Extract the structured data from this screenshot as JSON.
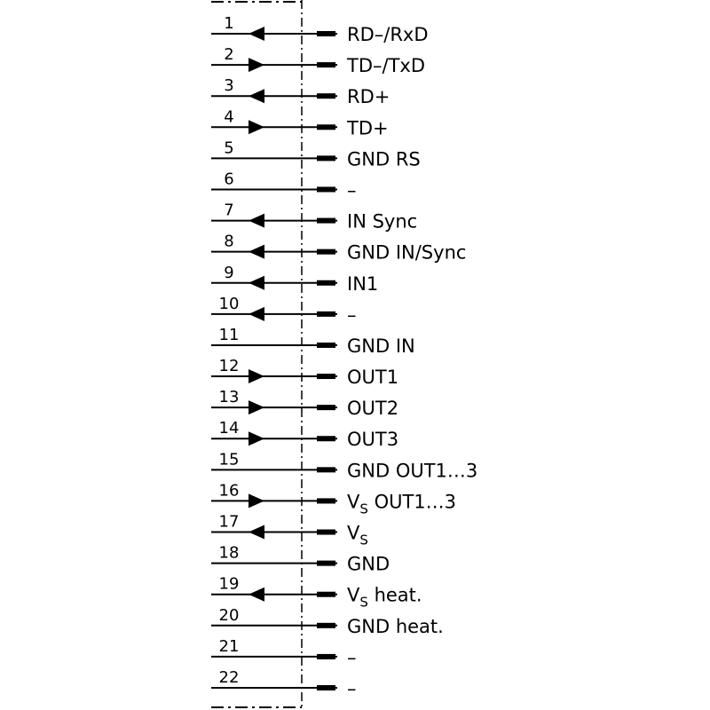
{
  "pins": [
    {
      "number": "1",
      "direction": "in",
      "label": "RD–/RxD"
    },
    {
      "number": "2",
      "direction": "out",
      "label": "TD–/TxD"
    },
    {
      "number": "3",
      "direction": "in",
      "label": "RD+"
    },
    {
      "number": "4",
      "direction": "out",
      "label": "TD+"
    },
    {
      "number": "5",
      "direction": "none",
      "label": "GND RS"
    },
    {
      "number": "6",
      "direction": "none",
      "label": "–"
    },
    {
      "number": "7",
      "direction": "in",
      "label": "IN Sync"
    },
    {
      "number": "8",
      "direction": "in",
      "label": "GND IN/Sync"
    },
    {
      "number": "9",
      "direction": "in",
      "label": "IN1"
    },
    {
      "number": "10",
      "direction": "in",
      "label": "–"
    },
    {
      "number": "11",
      "direction": "none",
      "label": "GND IN"
    },
    {
      "number": "12",
      "direction": "out",
      "label": "OUT1"
    },
    {
      "number": "13",
      "direction": "out",
      "label": "OUT2"
    },
    {
      "number": "14",
      "direction": "out",
      "label": "OUT3"
    },
    {
      "number": "15",
      "direction": "none",
      "label": "GND OUT1…3"
    },
    {
      "number": "16",
      "direction": "out",
      "label": "V",
      "subscript": "S",
      "suffix": " OUT1…3"
    },
    {
      "number": "17",
      "direction": "in",
      "label": "V",
      "subscript": "S"
    },
    {
      "number": "18",
      "direction": "none",
      "label": "GND"
    },
    {
      "number": "19",
      "direction": "in",
      "label": "V",
      "subscript": "S",
      "suffix": " heat."
    },
    {
      "number": "20",
      "direction": "none",
      "label": "GND heat."
    },
    {
      "number": "21",
      "direction": "none",
      "label": "–"
    },
    {
      "number": "22",
      "direction": "none",
      "label": "–"
    }
  ]
}
